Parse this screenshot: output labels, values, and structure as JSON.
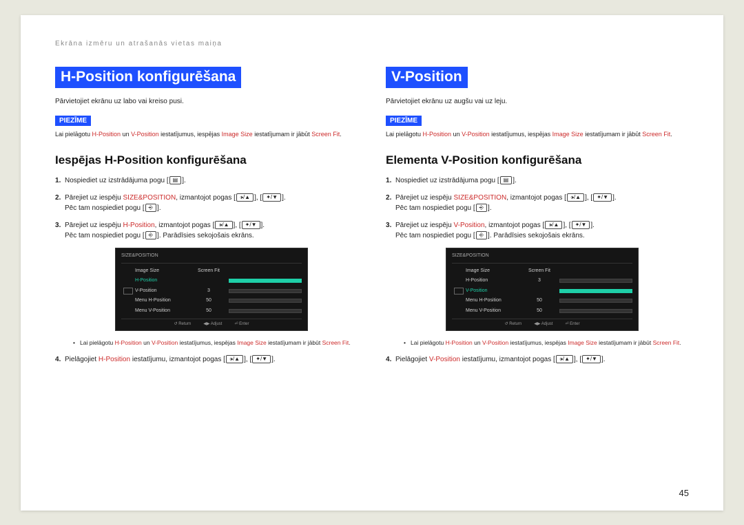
{
  "breadcrumb": "Ekrāna izmēru un atrašanās vietas maiņa",
  "pageNumber": "45",
  "noteLabel": "PIEZĪME",
  "colors": {
    "accent": "#1e50ff",
    "inlineRed": "#cc2a2a",
    "osdHighlight": "#1fcfa8",
    "osdBg": "#151515"
  },
  "left": {
    "title": "H-Position konfigurēšana",
    "intro": "Pārvietojiet ekrānu uz labo vai kreiso pusi.",
    "note_pre": "Lai pielāgotu ",
    "note_t1": "H-Position",
    "note_mid1": " un ",
    "note_t2": "V-Position",
    "note_mid2": " iestatījumus, iespējas ",
    "note_t3": "Image Size",
    "note_mid3": " iestatījumam ir jābūt ",
    "note_t4": "Screen Fit",
    "note_end": ".",
    "subtitle": "Iespējas H-Position konfigurēšana",
    "s1a": "Nospiediet uz izstrādājuma pogu [",
    "s1b": "].",
    "s2a": "Pārejiet uz iespēju ",
    "s2term": "SIZE&POSITION",
    "s2b": ", izmantojot pogas [",
    "s2c": "], [",
    "s2d": "].",
    "s2e": "Pēc tam nospiediet pogu [",
    "s2f": "].",
    "s3a": "Pārejiet uz iespēju ",
    "s3term": "H-Position",
    "s3b": ", izmantojot pogas [",
    "s3c": "], [",
    "s3d": "].",
    "s3e": "Pēc tam nospiediet pogu [",
    "s3f": "]. Parādīsies sekojošais ekrāns.",
    "s4a": "Pielāgojiet ",
    "s4term": "H-Position",
    "s4b": " iestatījumu, izmantojot pogas [",
    "s4c": "], [",
    "s4d": "].",
    "bullet_pre": "Lai pielāgotu ",
    "bullet_t1": "H-Position",
    "bullet_m1": " un ",
    "bullet_t2": "V-Position",
    "bullet_m2": " iestatījumus, iespējas ",
    "bullet_t3": "Image Size",
    "bullet_m3": " iestatījumam ir jābūt ",
    "bullet_t4": "Screen Fit",
    "bullet_end": ".",
    "osd": {
      "title": "SIZE&POSITION",
      "highlightIndex": 1,
      "rows": [
        {
          "label": "Image Size",
          "val": "Screen Fit",
          "slider": false
        },
        {
          "label": "H-Position",
          "val": "",
          "slider": true
        },
        {
          "label": "V-Position",
          "val": "3",
          "slider": true
        },
        {
          "label": "Menu H-Position",
          "val": "50",
          "slider": true
        },
        {
          "label": "Menu V-Position",
          "val": "50",
          "slider": true
        }
      ],
      "foot": [
        "Return",
        "Adjust",
        "Enter"
      ]
    }
  },
  "right": {
    "title": "V-Position",
    "intro": "Pārvietojiet ekrānu uz augšu vai uz leju.",
    "note_pre": "Lai pielāgotu ",
    "note_t1": "H-Position",
    "note_mid1": " un ",
    "note_t2": "V-Position",
    "note_mid2": " iestatījumus, iespējas ",
    "note_t3": "Image Size",
    "note_mid3": " iestatījumam ir jābūt ",
    "note_t4": "Screen Fit",
    "note_end": ".",
    "subtitle": "Elementa V-Position konfigurēšana",
    "s1a": "Nospiediet uz izstrādājuma pogu [",
    "s1b": "].",
    "s2a": "Pārejiet uz iespēju ",
    "s2term": "SIZE&POSITION",
    "s2b": ", izmantojot pogas [",
    "s2c": "], [",
    "s2d": "].",
    "s2e": "Pēc tam nospiediet pogu [",
    "s2f": "].",
    "s3a": "Pārejiet uz iespēju ",
    "s3term": "V-Position",
    "s3b": ", izmantojot pogas [",
    "s3c": "], [",
    "s3d": "].",
    "s3e": "Pēc tam nospiediet pogu [",
    "s3f": "]. Parādīsies sekojošais ekrāns.",
    "s4a": "Pielāgojiet ",
    "s4term": "V-Position",
    "s4b": " iestatījumu, izmantojot pogas [",
    "s4c": "], [",
    "s4d": "].",
    "bullet_pre": "Lai pielāgotu ",
    "bullet_t1": "H-Position",
    "bullet_m1": " un ",
    "bullet_t2": "V-Position",
    "bullet_m2": " iestatījumus, iespējas ",
    "bullet_t3": "Image Size",
    "bullet_m3": " iestatījumam ir jābūt ",
    "bullet_t4": "Screen Fit",
    "bullet_end": ".",
    "osd": {
      "title": "SIZE&POSITION",
      "highlightIndex": 2,
      "rows": [
        {
          "label": "Image Size",
          "val": "Screen Fit",
          "slider": false
        },
        {
          "label": "H-Position",
          "val": "3",
          "slider": true
        },
        {
          "label": "V-Position",
          "val": "",
          "slider": true
        },
        {
          "label": "Menu H-Position",
          "val": "50",
          "slider": true
        },
        {
          "label": "Menu V-Position",
          "val": "50",
          "slider": true
        }
      ],
      "foot": [
        "Return",
        "Adjust",
        "Enter"
      ]
    }
  },
  "icons": {
    "menu": "▤",
    "volUp": "🕩/▲",
    "volDn": "✦/▼",
    "enter": "⎆"
  }
}
